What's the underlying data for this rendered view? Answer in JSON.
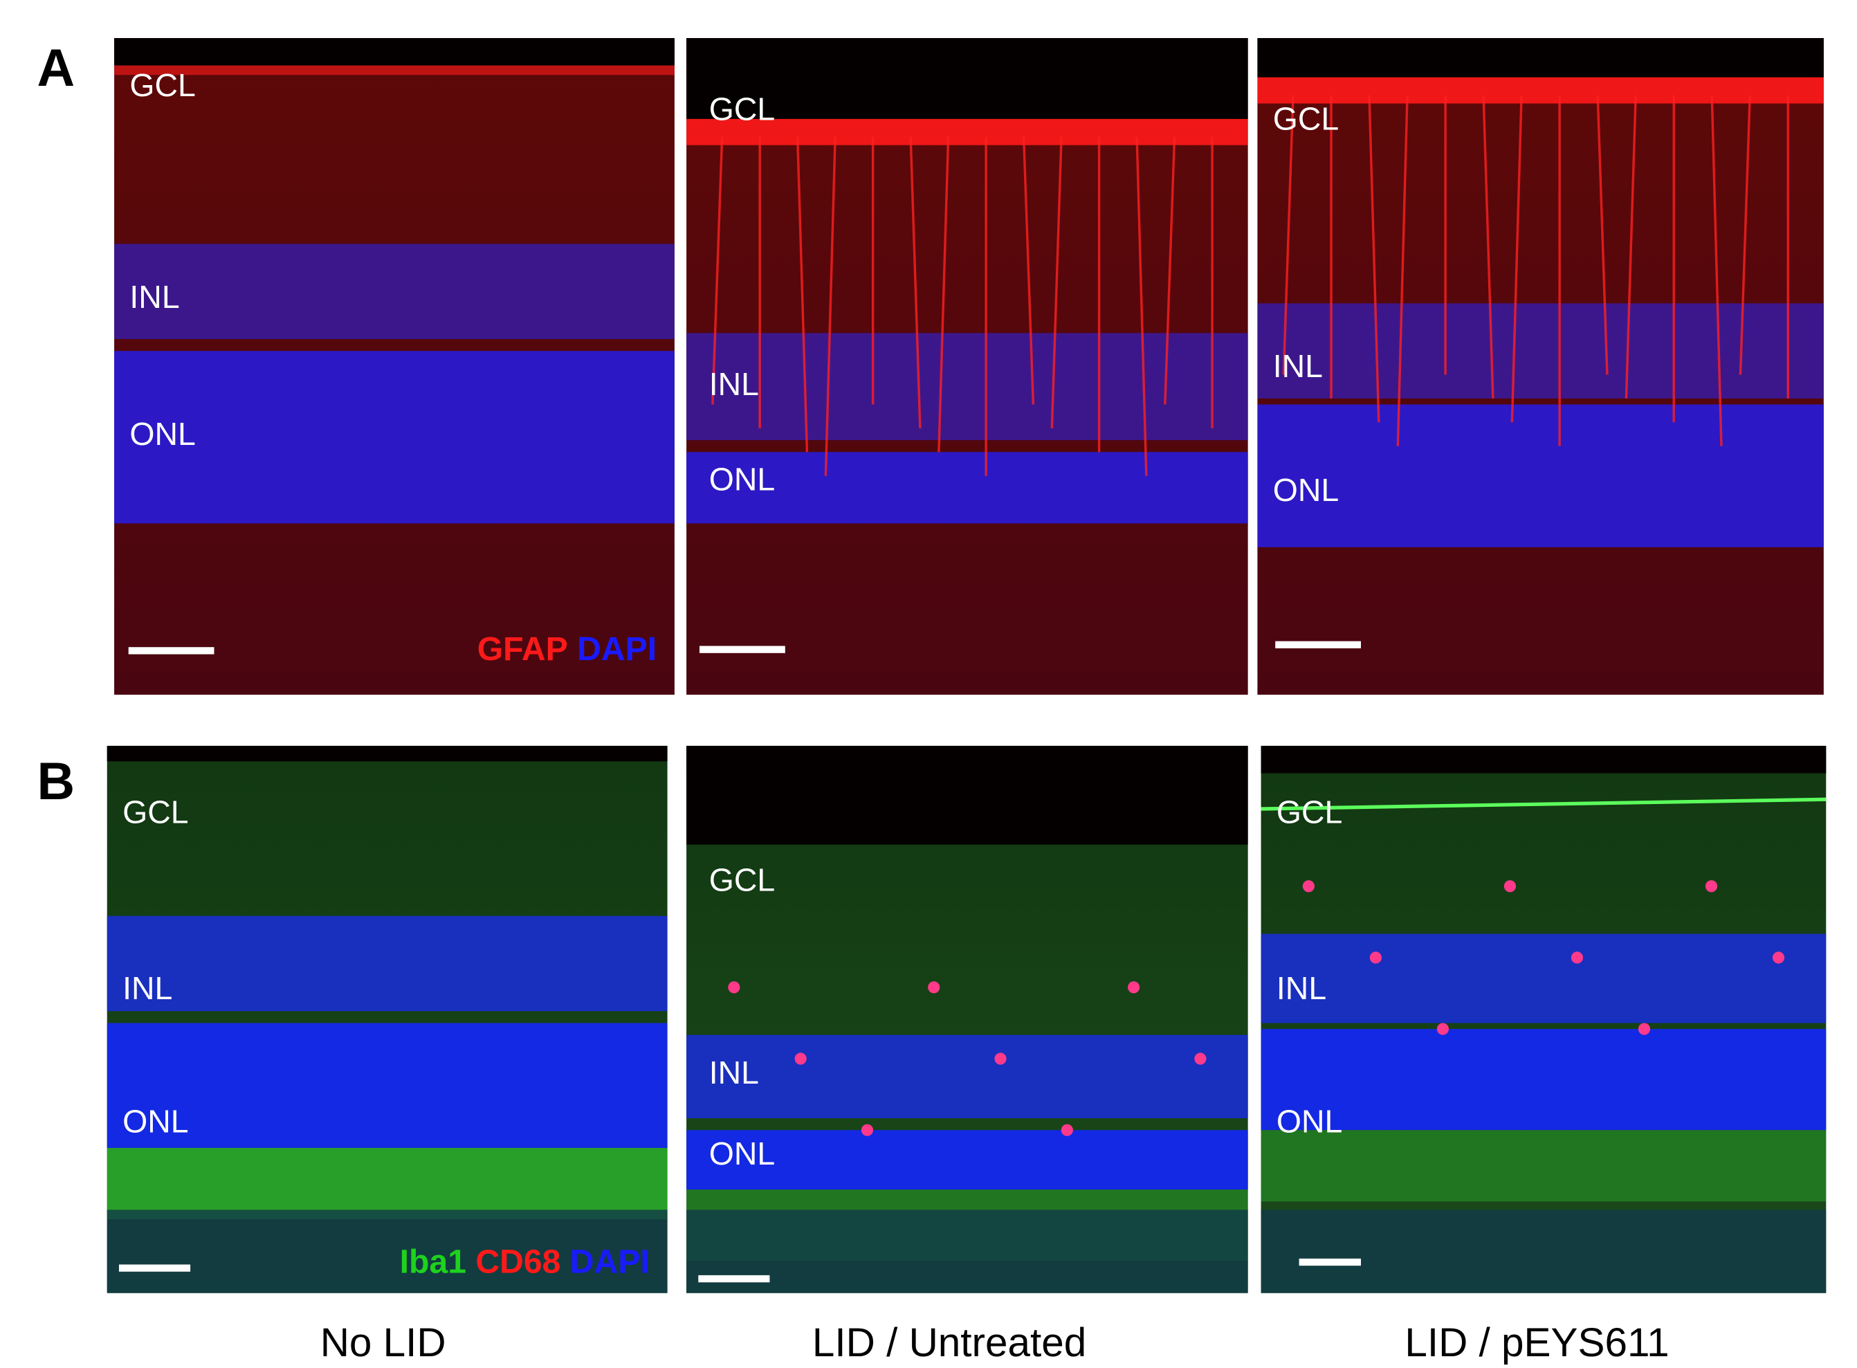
{
  "panels": [
    {
      "letter": "A",
      "images": [
        {
          "layers": [
            "GCL",
            "INL",
            "ONL"
          ],
          "stain": [
            "GFAP",
            "DAPI"
          ]
        },
        {
          "layers": [
            "GCL",
            "INL",
            "ONL"
          ]
        },
        {
          "layers": [
            "GCL",
            "INL",
            "ONL"
          ]
        }
      ]
    },
    {
      "letter": "B",
      "images": [
        {
          "layers": [
            "GCL",
            "INL",
            "ONL"
          ],
          "stain": [
            "Iba1",
            "CD68",
            "DAPI"
          ]
        },
        {
          "layers": [
            "GCL",
            "INL",
            "ONL"
          ]
        },
        {
          "layers": [
            "GCL",
            "INL",
            "ONL"
          ]
        }
      ]
    }
  ],
  "column_labels": [
    "No LID",
    "LID / Untreated",
    "LID / pEYS611"
  ]
}
